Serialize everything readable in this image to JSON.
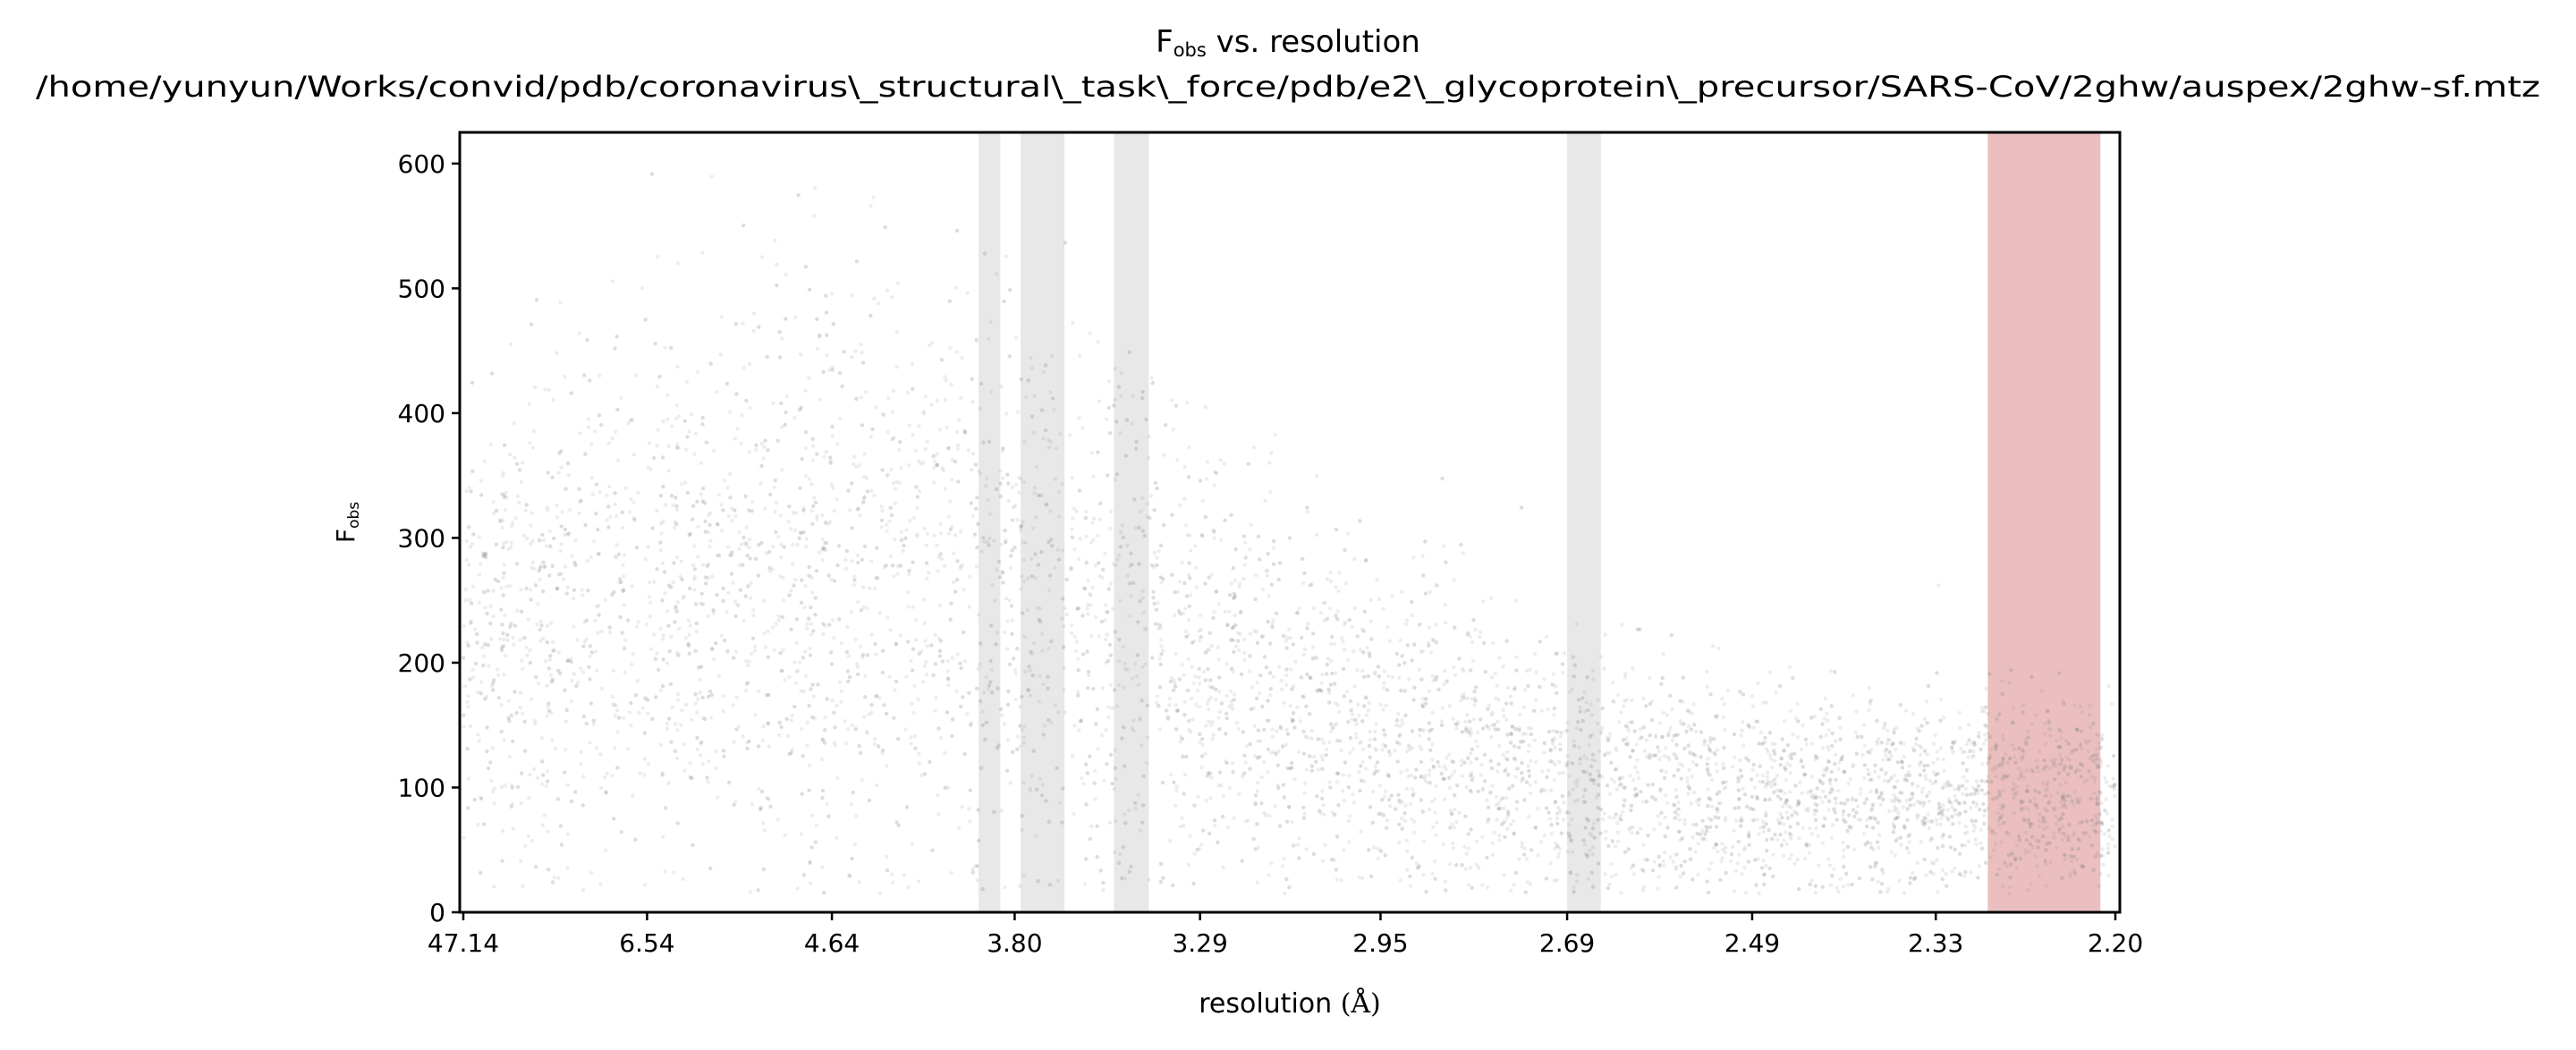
{
  "chart_data": {
    "type": "scatter",
    "title_main": "F",
    "title_sub": "obs",
    "title_rest": " vs. resolution",
    "subtitle": "/home/yunyun/Works/convid/pdb/coronavirus\\_structural\\_task\\_force/pdb/e2\\_glycoprotein\\_precursor/SARS-CoV/2ghw/auspex/2ghw-sf.mtz",
    "xlabel_text": "resolution ",
    "xlabel_unit": "(Å)",
    "ylabel_main": "F",
    "ylabel_sub": "obs",
    "x_scale": "inverse-square resolution (1/d²)",
    "x_ticks": [
      "47.14",
      "6.54",
      "4.64",
      "3.80",
      "3.29",
      "2.95",
      "2.69",
      "2.49",
      "2.33",
      "2.20"
    ],
    "y_ticks": [
      "0",
      "100",
      "200",
      "300",
      "400",
      "500",
      "600"
    ],
    "xlim_resolution": [
      47.14,
      2.2
    ],
    "ylim": [
      0,
      625
    ],
    "grid": false,
    "point_color": "#808080",
    "ice_ring_color": "#e0e0e0",
    "high_res_band_color": "#e8b4b4",
    "ice_ring_bands_resolution": [
      [
        3.93,
        3.85
      ],
      [
        3.78,
        3.64
      ],
      [
        3.5,
        3.41
      ],
      [
        2.69,
        2.65
      ]
    ],
    "highlight_band_resolution": [
      2.29,
      2.21
    ],
    "density_profile": [
      {
        "resolution": 47.14,
        "median_fobs": 200,
        "spread": 150
      },
      {
        "resolution": 6.54,
        "median_fobs": 260,
        "spread": 190
      },
      {
        "resolution": 4.64,
        "median_fobs": 270,
        "spread": 200
      },
      {
        "resolution": 3.8,
        "median_fobs": 250,
        "spread": 190
      },
      {
        "resolution": 3.29,
        "median_fobs": 200,
        "spread": 150
      },
      {
        "resolution": 2.95,
        "median_fobs": 140,
        "spread": 110
      },
      {
        "resolution": 2.69,
        "median_fobs": 110,
        "spread": 85
      },
      {
        "resolution": 2.49,
        "median_fobs": 95,
        "spread": 70
      },
      {
        "resolution": 2.33,
        "median_fobs": 95,
        "spread": 65
      },
      {
        "resolution": 2.2,
        "median_fobs": 95,
        "spread": 60
      }
    ]
  }
}
